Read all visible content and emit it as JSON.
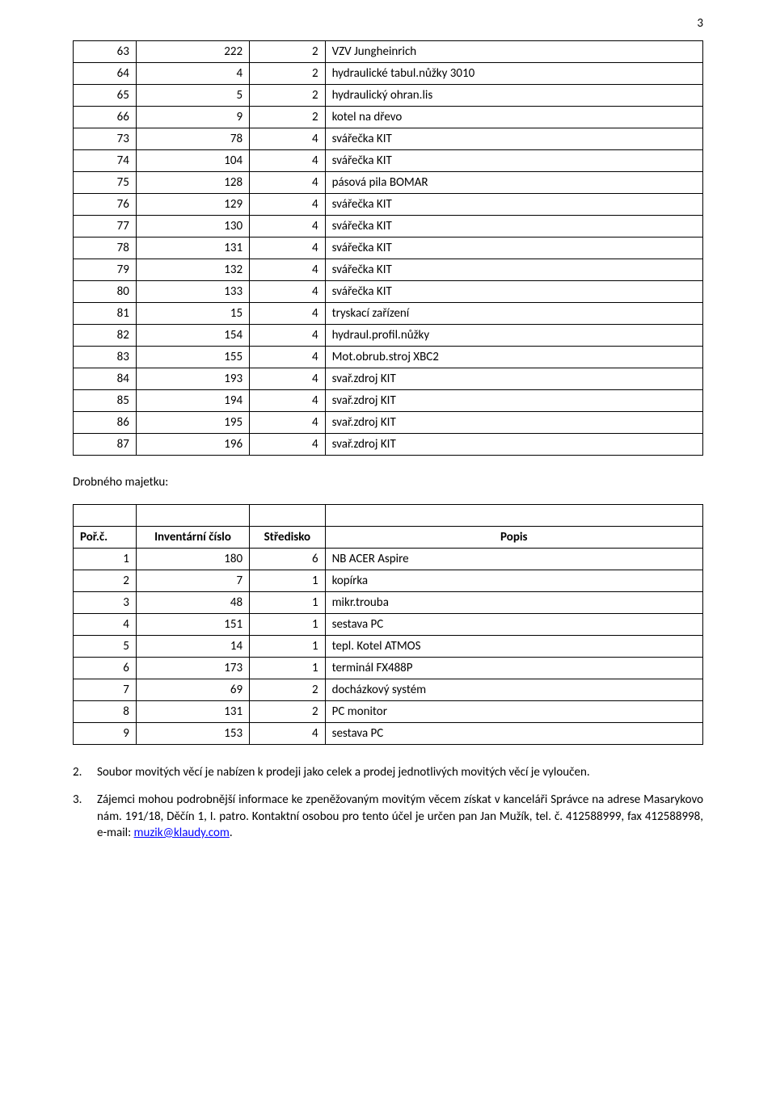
{
  "page_number": "3",
  "table1": {
    "rows": [
      [
        "63",
        "222",
        "2",
        "VZV Jungheinrich"
      ],
      [
        "64",
        "4",
        "2",
        "hydraulické tabul.nůžky 3010"
      ],
      [
        "65",
        "5",
        "2",
        "hydraulický ohran.lis"
      ],
      [
        "66",
        "9",
        "2",
        "kotel na dřevo"
      ],
      [
        "73",
        "78",
        "4",
        "svářečka KIT"
      ],
      [
        "74",
        "104",
        "4",
        "svářečka KIT"
      ],
      [
        "75",
        "128",
        "4",
        "pásová pila BOMAR"
      ],
      [
        "76",
        "129",
        "4",
        "svářečka KIT"
      ],
      [
        "77",
        "130",
        "4",
        "svářečka KIT"
      ],
      [
        "78",
        "131",
        "4",
        "svářečka KIT"
      ],
      [
        "79",
        "132",
        "4",
        "svářečka KIT"
      ],
      [
        "80",
        "133",
        "4",
        "svářečka KIT"
      ],
      [
        "81",
        "15",
        "4",
        "tryskací zařízení"
      ],
      [
        "82",
        "154",
        "4",
        "hydraul.profil.nůžky"
      ],
      [
        "83",
        "155",
        "4",
        "Mot.obrub.stroj XBC2"
      ],
      [
        "84",
        "193",
        "4",
        "svař.zdroj KIT"
      ],
      [
        "85",
        "194",
        "4",
        "svař.zdroj KIT"
      ],
      [
        "86",
        "195",
        "4",
        "svař.zdroj KIT"
      ],
      [
        "87",
        "196",
        "4",
        "svař.zdroj KIT"
      ]
    ]
  },
  "section_title": "Drobného majetku:",
  "table2": {
    "header": [
      "Poř.č.",
      "Inventární číslo",
      "Středisko",
      "Popis"
    ],
    "rows": [
      [
        "1",
        "180",
        "6",
        "NB ACER Aspire"
      ],
      [
        "2",
        "7",
        "1",
        "kopírka"
      ],
      [
        "3",
        "48",
        "1",
        "mikr.trouba"
      ],
      [
        "4",
        "151",
        "1",
        "sestava PC"
      ],
      [
        "5",
        "14",
        "1",
        "tepl. Kotel ATMOS"
      ],
      [
        "6",
        "173",
        "1",
        "terminál FX488P"
      ],
      [
        "7",
        "69",
        "2",
        "docházkový systém"
      ],
      [
        "8",
        "131",
        "2",
        "PC monitor"
      ],
      [
        "9",
        "153",
        "4",
        "sestava PC"
      ]
    ]
  },
  "item2": {
    "num": "2.",
    "text": "Soubor movitých věcí je nabízen k prodeji jako celek a prodej jednotlivých movitých věcí je vyloučen."
  },
  "item3": {
    "num": "3.",
    "text_before": "Zájemci mohou podrobnější informace ke zpeněžovaným movitým věcem získat v kanceláři Správce  na adrese Masarykovo nám. 191/18, Děčín 1, I. patro.  Kontaktní osobou pro tento účel je určen pan Jan Mužík, tel. č. 412588999, fax 412588998, e-mail: ",
    "link_text": "muzik@klaudy.com",
    "text_after": "."
  }
}
